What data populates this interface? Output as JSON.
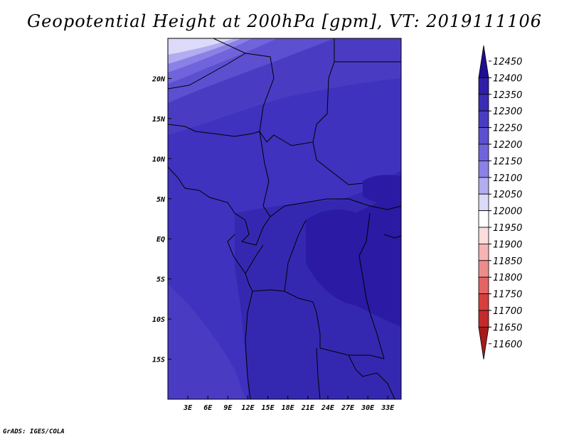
{
  "title": "Geopotential Height at 200hPa [gpm], VT: 2019111106",
  "credit": "GrADS: IGES/COLA",
  "map": {
    "lon_range": [
      0,
      35
    ],
    "lat_range": [
      -20,
      25
    ],
    "x_ticks": [
      {
        "lon": 3,
        "label": "3E"
      },
      {
        "lon": 6,
        "label": "6E"
      },
      {
        "lon": 9,
        "label": "9E"
      },
      {
        "lon": 12,
        "label": "12E"
      },
      {
        "lon": 15,
        "label": "15E"
      },
      {
        "lon": 18,
        "label": "18E"
      },
      {
        "lon": 21,
        "label": "21E"
      },
      {
        "lon": 24,
        "label": "24E"
      },
      {
        "lon": 27,
        "label": "27E"
      },
      {
        "lon": 30,
        "label": "30E"
      },
      {
        "lon": 33,
        "label": "33E"
      }
    ],
    "y_ticks": [
      {
        "lat": 20,
        "label": "20N"
      },
      {
        "lat": 15,
        "label": "15N"
      },
      {
        "lat": 10,
        "label": "10N"
      },
      {
        "lat": 5,
        "label": "5N"
      },
      {
        "lat": 0,
        "label": "EQ"
      },
      {
        "lat": -5,
        "label": "5S"
      },
      {
        "lat": -10,
        "label": "10S"
      },
      {
        "lat": -15,
        "label": "15S"
      }
    ]
  },
  "colorbar": {
    "levels": [
      "12450",
      "12400",
      "12350",
      "12300",
      "12250",
      "12200",
      "12150",
      "12100",
      "12050",
      "12000",
      "11950",
      "11900",
      "11850",
      "11800",
      "11750",
      "11700",
      "11650",
      "11600"
    ],
    "colors": [
      "#1e0e92",
      "#2e1ea8",
      "#3a2cb4",
      "#4a3cc2",
      "#5c50d0",
      "#7064dc",
      "#8a80e6",
      "#b2acf0",
      "#dcdaf8",
      "#ffffff",
      "#fcdcdc",
      "#f6b4b4",
      "#ee8c8c",
      "#e46464",
      "#d83e3e",
      "#c42a2a",
      "#a81a1a"
    ]
  }
}
